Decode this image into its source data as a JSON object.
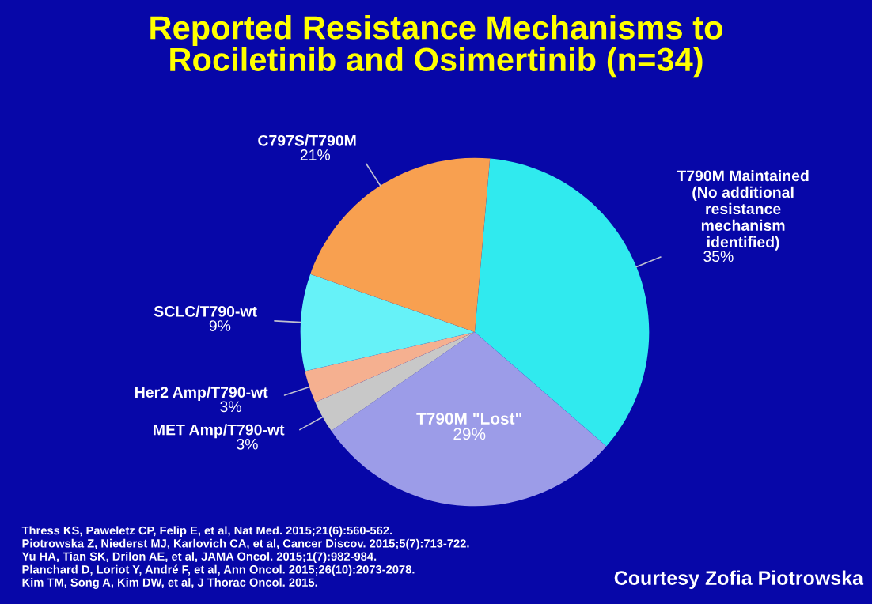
{
  "chart_data": {
    "type": "pie",
    "title": "Reported Resistance Mechanisms to\nRociletinib and Osimertinib (n=34)",
    "categories": [
      "T790M Maintained\n(No additional\nresistance\nmechanism\nidentified)",
      "T790M \"Lost\"",
      "MET Amp/T790-wt",
      "Her2 Amp/T790-wt",
      "SCLC/T790-wt",
      "C797S/T790M"
    ],
    "values": [
      35,
      29,
      3,
      3,
      9,
      21
    ],
    "value_labels": [
      "35%",
      "29%",
      "3%",
      "3%",
      "9%",
      "21%"
    ],
    "colors": [
      "#30eaee",
      "#9c9ce8",
      "#c8c8c8",
      "#f5b090",
      "#66f2f8",
      "#f8a050"
    ],
    "annotations": [
      "Thress KS, Paweletz CP, Felip E, et al, Nat Med. 2015;21(6):560-562.\nPiotrowska Z, Niederst MJ, Karlovich CA, et al, Cancer Discov. 2015;5(7):713-722.\nYu HA, Tian SK, Drilon AE, et al, JAMA Oncol. 2015;1(7):982-984.\nPlanchard D, Loriot Y, André F, et al, Ann Oncol. 2015;26(10):2073-2078.\nKim TM, Song A, Kim DW, et al, J Thorac Oncol. 2015.",
      "Courtesy Zofia Piotrowska"
    ]
  }
}
